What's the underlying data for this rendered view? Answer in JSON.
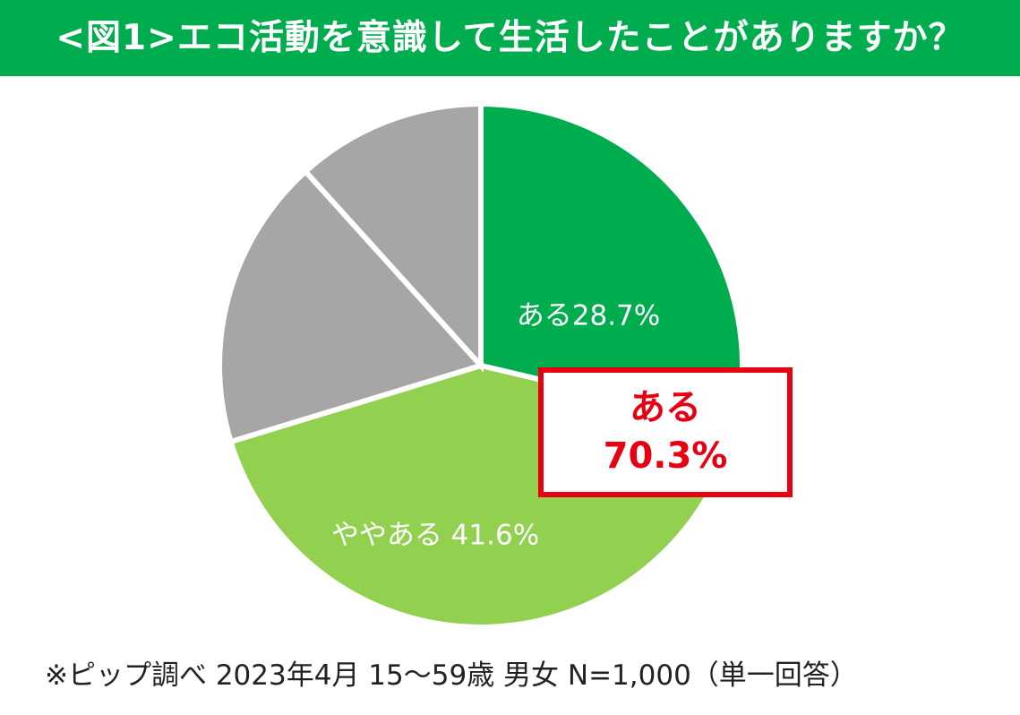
{
  "header": {
    "title": "<図1>エコ活動を意識して生活したことがありますか？"
  },
  "chart_data": {
    "type": "pie",
    "title": "<図1>エコ活動を意識して生活したことがありますか？",
    "slices": [
      {
        "label": "ある",
        "value": 28.7,
        "display": "ある28.7%",
        "color": "#00ad4e"
      },
      {
        "label": "ややある",
        "value": 41.6,
        "display": "ややある 41.6%",
        "color": "#92d050"
      },
      {
        "label": "",
        "value": 18.0,
        "display": "",
        "color": "#a6a6a6"
      },
      {
        "label": "",
        "value": 11.7,
        "display": "",
        "color": "#a6a6a6"
      }
    ],
    "start": "12 o'clock",
    "direction": "clockwise",
    "legend": "none"
  },
  "callout": {
    "label": "ある",
    "value": "70.3%",
    "border_color": "#e60012"
  },
  "footnote": "※ピップ調べ 2023年4月 15～59歳 男女 N=1,000（単一回答）"
}
